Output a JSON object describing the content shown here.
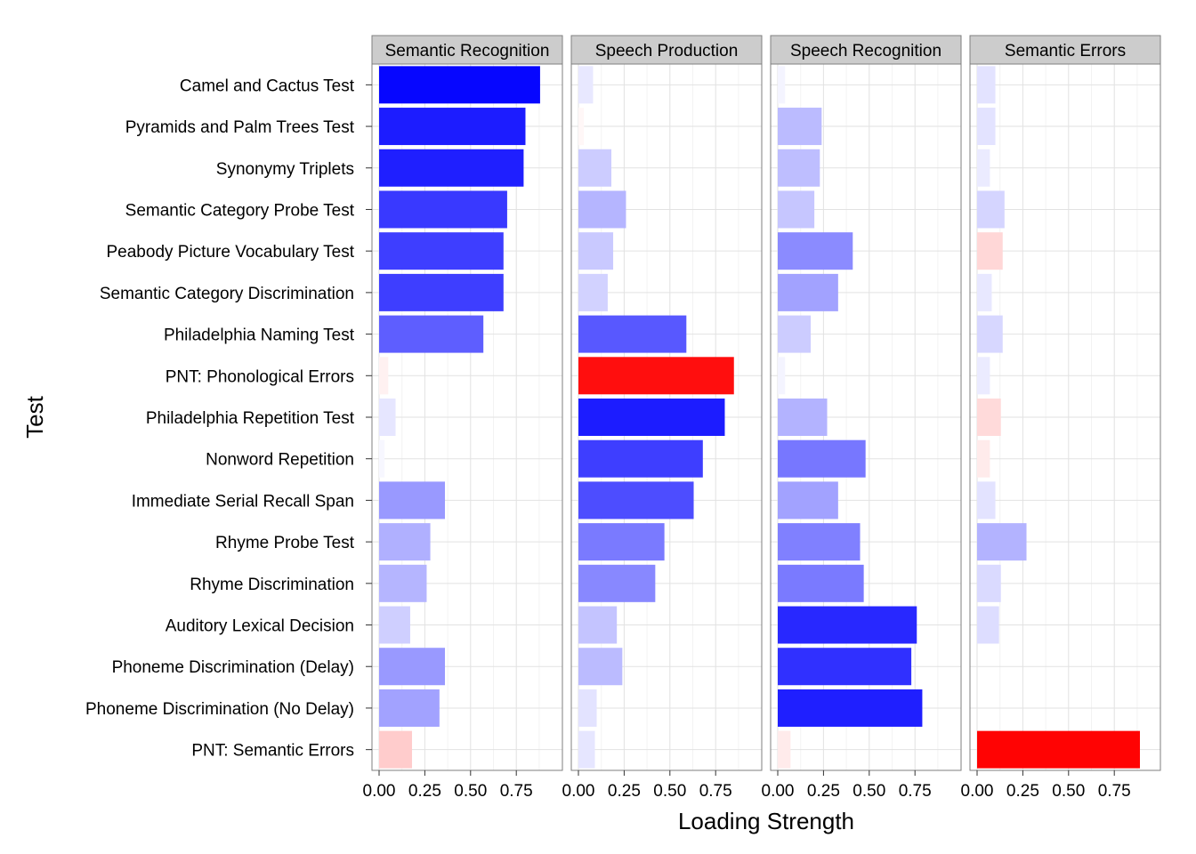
{
  "chart_data": {
    "type": "bar",
    "orientation": "horizontal",
    "facet": "columns",
    "xlabel": "Loading Strength",
    "ylabel": "Test",
    "xlim": [
      -0.04,
      0.97
    ],
    "x_ticks": [
      0,
      0.25,
      0.5,
      0.75
    ],
    "x_tick_labels": [
      "0.00",
      "0.25",
      "0.50",
      "0.75"
    ],
    "grid": true,
    "legend": "none",
    "color_scale": {
      "positive": "#0000ff",
      "negative": "#ff0000",
      "low": "#ffffff"
    },
    "categories": [
      "Camel and Cactus Test",
      "Pyramids and Palm Trees Test",
      "Synonymy Triplets",
      "Semantic Category Probe Test",
      "Peabody Picture Vocabulary Test",
      "Semantic Category Discrimination",
      "Philadelphia Naming Test",
      "PNT: Phonological Errors",
      "Philadelphia Repetition Test",
      "Nonword Repetition",
      "Immediate Serial Recall Span",
      "Rhyme Probe Test",
      "Rhyme Discrimination",
      "Auditory Lexical Decision",
      "Phoneme Discrimination (Delay)",
      "Phoneme Discrimination (No Delay)",
      "PNT: Semantic Errors"
    ],
    "panels": [
      {
        "name": "Semantic Recognition",
        "values": [
          0.88,
          0.8,
          0.79,
          0.7,
          0.68,
          0.68,
          0.57,
          0.05,
          0.09,
          0.03,
          0.36,
          0.28,
          0.26,
          0.17,
          0.36,
          0.33,
          0.18
        ],
        "sign": [
          "+",
          "+",
          "+",
          "+",
          "+",
          "+",
          "+",
          "-",
          "+",
          "+",
          "+",
          "+",
          "+",
          "+",
          "+",
          "+",
          "-"
        ]
      },
      {
        "name": "Speech Production",
        "values": [
          0.08,
          0.03,
          0.18,
          0.26,
          0.19,
          0.16,
          0.59,
          0.85,
          0.8,
          0.68,
          0.63,
          0.47,
          0.42,
          0.21,
          0.24,
          0.1,
          0.09
        ],
        "sign": [
          "+",
          "-",
          "+",
          "+",
          "+",
          "+",
          "+",
          "-",
          "+",
          "+",
          "+",
          "+",
          "+",
          "+",
          "+",
          "+",
          "+"
        ]
      },
      {
        "name": "Speech Recognition",
        "values": [
          0.04,
          0.24,
          0.23,
          0.2,
          0.41,
          0.33,
          0.18,
          0.04,
          0.27,
          0.48,
          0.33,
          0.45,
          0.47,
          0.76,
          0.73,
          0.79,
          0.07
        ],
        "sign": [
          "+",
          "+",
          "+",
          "+",
          "+",
          "+",
          "+",
          "+",
          "+",
          "+",
          "+",
          "+",
          "+",
          "+",
          "+",
          "+",
          "-"
        ]
      },
      {
        "name": "Semantic Errors",
        "values": [
          0.1,
          0.1,
          0.07,
          0.15,
          0.14,
          0.08,
          0.14,
          0.07,
          0.13,
          0.07,
          0.1,
          0.27,
          0.13,
          0.12,
          0.0,
          0.0,
          0.89
        ],
        "sign": [
          "+",
          "+",
          "+",
          "+",
          "-",
          "+",
          "+",
          "+",
          "-",
          "-",
          "+",
          "+",
          "+",
          "+",
          "+",
          "+",
          "-"
        ]
      }
    ]
  }
}
